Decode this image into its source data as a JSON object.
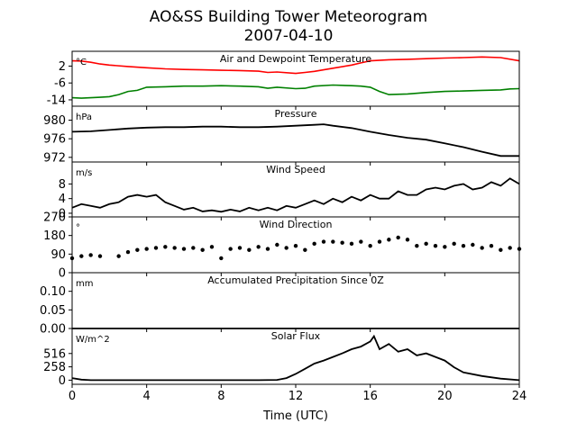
{
  "figure": {
    "title_line1": "AO&SS Building Tower Meteorogram",
    "title_line2": "2007-04-10",
    "xlabel": "Time (UTC)",
    "xticks": [
      0,
      4,
      8,
      12,
      16,
      20,
      24
    ],
    "xlim": [
      0,
      24
    ]
  },
  "chart_data": [
    {
      "type": "line",
      "title": "Air and Dewpoint Temperature",
      "unit": "°C",
      "ylim": [
        -17,
        9
      ],
      "yticks": [
        2,
        -6,
        -14
      ],
      "series": [
        {
          "color": "#ff0000",
          "x": [
            0,
            0.5,
            1,
            1.5,
            2,
            3,
            4,
            5,
            6,
            7,
            8,
            9,
            10,
            10.5,
            11,
            12,
            12.5,
            13,
            14,
            15,
            15.5,
            16,
            17,
            18,
            19,
            20,
            21,
            22,
            23,
            24
          ],
          "y": [
            4.5,
            4.4,
            3.8,
            3.0,
            2.5,
            1.8,
            1.2,
            0.7,
            0.4,
            0.2,
            0,
            -0.1,
            -0.4,
            -1.0,
            -0.8,
            -1.5,
            -1.0,
            -0.5,
            1.0,
            2.5,
            3.5,
            4.5,
            5.0,
            5.2,
            5.5,
            5.8,
            6.0,
            6.3,
            6.0,
            4.5
          ]
        },
        {
          "color": "#008000",
          "x": [
            0,
            0.5,
            1,
            1.5,
            2,
            2.5,
            3,
            3.5,
            4,
            5,
            6,
            7,
            8,
            9,
            10,
            10.5,
            11,
            12,
            12.5,
            13,
            14,
            15,
            15.5,
            16,
            16.5,
            17,
            18,
            19,
            20,
            21,
            22,
            23,
            23.5,
            24
          ],
          "y": [
            -13,
            -13.2,
            -13,
            -12.8,
            -12.5,
            -11.5,
            -10,
            -9.5,
            -8,
            -7.8,
            -7.5,
            -7.5,
            -7.3,
            -7.5,
            -7.8,
            -8.5,
            -8,
            -8.7,
            -8.5,
            -7.5,
            -7,
            -7.3,
            -7.5,
            -8,
            -10,
            -11.5,
            -11.2,
            -10.5,
            -10,
            -9.8,
            -9.5,
            -9.3,
            -8.8,
            -8.7
          ]
        }
      ]
    },
    {
      "type": "line",
      "title": "Pressure",
      "unit": "hPa",
      "ylim": [
        971,
        983
      ],
      "yticks": [
        980,
        976,
        972
      ],
      "series": [
        {
          "color": "#000000",
          "x": [
            0,
            1,
            2,
            3,
            4,
            5,
            6,
            7,
            8,
            9,
            10,
            11,
            12,
            13,
            13.5,
            14,
            15,
            16,
            17,
            18,
            19,
            20,
            21,
            22,
            23,
            24
          ],
          "y": [
            977.5,
            977.6,
            977.9,
            978.2,
            978.4,
            978.5,
            978.5,
            978.6,
            978.6,
            978.5,
            978.5,
            978.6,
            978.8,
            979.0,
            979.1,
            978.8,
            978.3,
            977.5,
            976.8,
            976.2,
            975.8,
            975.0,
            974.2,
            973.2,
            972.3,
            972.3
          ]
        }
      ]
    },
    {
      "type": "line",
      "title": "Wind Speed",
      "unit": "m/s",
      "ylim": [
        -1,
        14
      ],
      "yticks": [
        8,
        4,
        0
      ],
      "series": [
        {
          "color": "#000000",
          "x": [
            0,
            0.5,
            1,
            1.5,
            2,
            2.5,
            3,
            3.5,
            4,
            4.5,
            5,
            5.5,
            6,
            6.5,
            7,
            7.5,
            8,
            8.5,
            9,
            9.5,
            10,
            10.5,
            11,
            11.5,
            12,
            12.5,
            13,
            13.5,
            14,
            14.5,
            15,
            15.5,
            16,
            16.5,
            17,
            17.5,
            18,
            18.5,
            19,
            19.5,
            20,
            20.5,
            21,
            21.5,
            22,
            22.5,
            23,
            23.5,
            24
          ],
          "y": [
            1.5,
            2.5,
            2,
            1.5,
            2.5,
            3,
            4.5,
            5,
            4.5,
            5,
            3,
            2,
            1,
            1.5,
            0.5,
            0.8,
            0.4,
            1,
            0.5,
            1.5,
            0.8,
            1.5,
            0.8,
            2,
            1.5,
            2.5,
            3.5,
            2.5,
            4,
            3,
            4.5,
            3.5,
            5,
            4,
            4,
            6,
            5,
            5,
            6.5,
            7,
            6.5,
            7.5,
            8,
            6.5,
            7,
            8.5,
            7.5,
            9.5,
            8
          ]
        }
      ]
    },
    {
      "type": "scatter",
      "title": "Wind Direction",
      "unit": "°",
      "ylim": [
        0,
        270
      ],
      "yticks": [
        270,
        180,
        90,
        0
      ],
      "series": [
        {
          "color": "#000000",
          "x": [
            0,
            0.5,
            1,
            1.5,
            2.5,
            3,
            3.5,
            4,
            4.5,
            5,
            5.5,
            6,
            6.5,
            7,
            7.5,
            8,
            8.5,
            9,
            9.5,
            10,
            10.5,
            11,
            11.5,
            12,
            12.5,
            13,
            13.5,
            14,
            14.5,
            15,
            15.5,
            16,
            16.5,
            17,
            17.5,
            18,
            18.5,
            19,
            19.5,
            20,
            20.5,
            21,
            21.5,
            22,
            22.5,
            23,
            23.5,
            24
          ],
          "y": [
            70,
            80,
            85,
            80,
            80,
            100,
            110,
            115,
            120,
            125,
            120,
            115,
            120,
            110,
            125,
            70,
            115,
            120,
            110,
            125,
            115,
            135,
            120,
            130,
            110,
            140,
            150,
            150,
            145,
            140,
            150,
            130,
            150,
            160,
            170,
            160,
            130,
            140,
            130,
            125,
            140,
            130,
            135,
            120,
            130,
            110,
            120,
            115
          ]
        }
      ]
    },
    {
      "type": "line",
      "title": "Accumulated Precipitation Since 0Z",
      "unit": "mm",
      "ylim": [
        0,
        0.15
      ],
      "yticks": [
        0.1,
        0.05,
        0.0
      ],
      "tick_format": 2,
      "series": [
        {
          "color": "#000000",
          "x": [
            0,
            24
          ],
          "y": [
            0,
            0
          ]
        }
      ]
    },
    {
      "type": "line",
      "title": "Solar Flux",
      "unit": "W/m^2",
      "ylim": [
        -80,
        1000
      ],
      "yticks": [
        516,
        258,
        0
      ],
      "series": [
        {
          "color": "#000000",
          "x": [
            0,
            0.5,
            1,
            2,
            4,
            8,
            10,
            11,
            11.5,
            12,
            12.5,
            13,
            13.5,
            14,
            14.5,
            15,
            15.5,
            16,
            16.2,
            16.5,
            17,
            17.5,
            18,
            18.5,
            19,
            19.5,
            20,
            20.5,
            21,
            22,
            23,
            24
          ],
          "y": [
            40,
            10,
            0,
            0,
            0,
            0,
            0,
            5,
            40,
            120,
            220,
            320,
            380,
            450,
            520,
            600,
            650,
            750,
            850,
            600,
            700,
            550,
            600,
            480,
            520,
            450,
            380,
            250,
            150,
            80,
            30,
            0
          ]
        }
      ]
    }
  ]
}
